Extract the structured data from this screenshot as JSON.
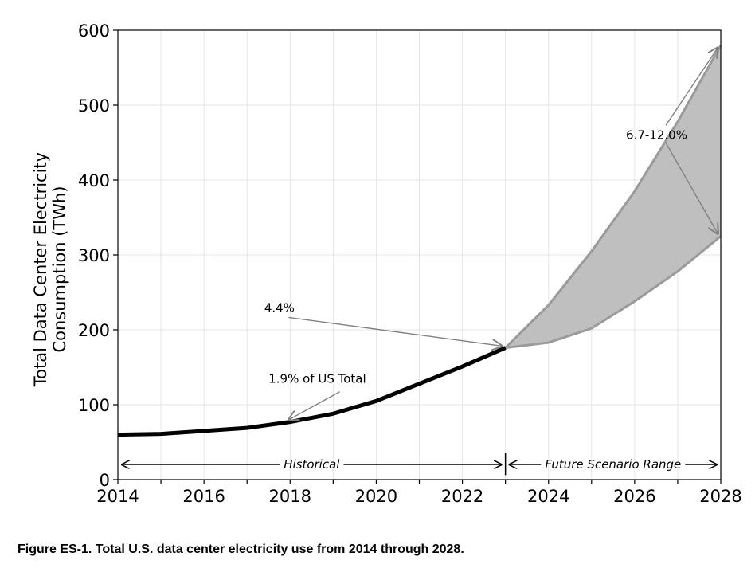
{
  "caption": "Figure ES-1. Total U.S. data center electricity use from 2014 through 2028.",
  "chart_data": {
    "type": "line",
    "title": "",
    "xlabel": "",
    "ylabel_lines": [
      "Total Data Center Electricity",
      "Consumption (TWh)"
    ],
    "xlim": [
      2014,
      2028
    ],
    "ylim": [
      0,
      600
    ],
    "x_ticks": [
      2014,
      2016,
      2018,
      2020,
      2022,
      2024,
      2026,
      2028
    ],
    "y_ticks": [
      0,
      100,
      200,
      300,
      400,
      500,
      600
    ],
    "grid": true,
    "historical": {
      "x": [
        2014,
        2015,
        2016,
        2017,
        2018,
        2019,
        2020,
        2021,
        2022,
        2023
      ],
      "y": [
        60,
        61,
        65,
        69,
        77,
        88,
        105,
        128,
        151,
        176
      ]
    },
    "scenario_upper": {
      "x": [
        2023,
        2024,
        2025,
        2026,
        2027,
        2028
      ],
      "y": [
        176,
        233,
        305,
        385,
        478,
        580
      ]
    },
    "scenario_lower": {
      "x": [
        2023,
        2024,
        2025,
        2026,
        2027,
        2028
      ],
      "y": [
        176,
        183,
        202,
        238,
        278,
        325
      ]
    },
    "colors": {
      "historical_line": "#000000",
      "band_fill": "#bfbfbf",
      "band_edge": "#9a9a9a",
      "annotation_arrow": "#808080",
      "grid": "#e6e6e6"
    },
    "annotations": [
      {
        "text": "1.9% of US Total",
        "x": 2017.5,
        "y": 129,
        "arrow_to": [
          2018,
          77
        ]
      },
      {
        "text": "4.4%",
        "x": 2017.4,
        "y": 224,
        "arrow_to": [
          2023,
          176
        ]
      },
      {
        "text": "6.7-12.0%",
        "x": 2025.8,
        "y": 455,
        "arrow_to": [
          [
            2028,
            580
          ],
          [
            2028,
            325
          ]
        ]
      }
    ],
    "ranges": [
      {
        "label": "Historical",
        "from": 2014,
        "to": 2023,
        "y": 20
      },
      {
        "label": "Future Scenario Range",
        "from": 2023,
        "to": 2028,
        "y": 20
      }
    ],
    "divider_x": 2023
  }
}
